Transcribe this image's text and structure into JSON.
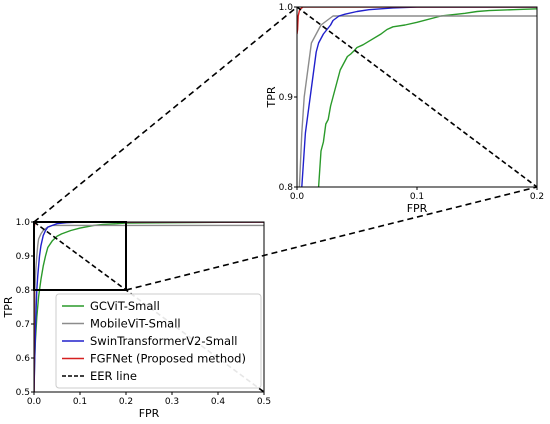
{
  "chart_data": [
    {
      "id": "main",
      "type": "line",
      "xlabel": "FPR",
      "ylabel": "TPR",
      "xlim": [
        0,
        0.5
      ],
      "ylim": [
        0.5,
        1.0
      ],
      "xticks": [
        "0.0",
        "0.1",
        "0.2",
        "0.3",
        "0.4",
        "0.5"
      ],
      "xtick_values": [
        0,
        0.1,
        0.2,
        0.3,
        0.4,
        0.5
      ],
      "yticks": [
        "0.5",
        "0.6",
        "0.7",
        "0.8",
        "0.9",
        "1.0"
      ],
      "ytick_values": [
        0.5,
        0.6,
        0.7,
        0.8,
        0.9,
        1.0
      ],
      "grid": false,
      "legend_position": "lower-right",
      "zoom_box": {
        "x": [
          0,
          0.2
        ],
        "y": [
          0.8,
          1.0
        ]
      },
      "series": [
        {
          "name": "GCViT-Small",
          "color": "#2a9a2a",
          "x": [
            0,
            0.001,
            0.003,
            0.006,
            0.01,
            0.015,
            0.02,
            0.025,
            0.03,
            0.04,
            0.05,
            0.06,
            0.08,
            0.1,
            0.13,
            0.15,
            0.18,
            0.2,
            0.3,
            0.5
          ],
          "y": [
            0.5,
            0.58,
            0.65,
            0.72,
            0.78,
            0.83,
            0.87,
            0.9,
            0.925,
            0.945,
            0.958,
            0.965,
            0.975,
            0.982,
            0.99,
            0.993,
            0.995,
            0.997,
            0.998,
            1.0
          ]
        },
        {
          "name": "MobileViT-Small",
          "color": "#8c8c8c",
          "x": [
            0,
            0.001,
            0.002,
            0.004,
            0.006,
            0.008,
            0.01,
            0.015,
            0.02,
            0.03,
            0.04,
            0.06,
            0.08,
            0.1,
            0.15,
            0.2,
            0.3,
            0.5
          ],
          "y": [
            0.5,
            0.7,
            0.8,
            0.86,
            0.9,
            0.93,
            0.95,
            0.965,
            0.975,
            0.985,
            0.99,
            0.99,
            0.99,
            0.99,
            0.99,
            0.99,
            0.99,
            0.99
          ]
        },
        {
          "name": "SwinTransformerV2-Small",
          "color": "#2020cc",
          "x": [
            0,
            0.002,
            0.004,
            0.006,
            0.008,
            0.01,
            0.012,
            0.015,
            0.02,
            0.025,
            0.03,
            0.04,
            0.05,
            0.07,
            0.1,
            0.15,
            0.2,
            0.5
          ],
          "y": [
            0.5,
            0.62,
            0.72,
            0.8,
            0.84,
            0.87,
            0.9,
            0.93,
            0.96,
            0.975,
            0.985,
            0.99,
            0.995,
            0.998,
            1.0,
            1.0,
            1.0,
            1.0
          ]
        },
        {
          "name": "FGFNet (Proposed method)",
          "color": "#d62020",
          "x": [
            0,
            0.0005,
            0.001,
            0.002,
            0.004,
            0.01,
            0.05,
            0.1,
            0.2,
            0.5
          ],
          "y": [
            0.5,
            0.98,
            0.99,
            0.996,
            1.0,
            1.0,
            1.0,
            1.0,
            1.0,
            1.0
          ]
        },
        {
          "name": "EER line",
          "color": "#000000",
          "dashed": true,
          "x": [
            0,
            0.5
          ],
          "y": [
            1.0,
            0.5
          ]
        }
      ]
    },
    {
      "id": "inset",
      "type": "line",
      "xlabel": "FPR",
      "ylabel": "TPR",
      "xlim": [
        0,
        0.2
      ],
      "ylim": [
        0.8,
        1.0
      ],
      "xticks": [
        "0.0",
        "0.1",
        "0.2"
      ],
      "xtick_values": [
        0,
        0.1,
        0.2
      ],
      "yticks": [
        "0.8",
        "0.9",
        "1.0"
      ],
      "ytick_values": [
        0.8,
        0.9,
        1.0
      ],
      "grid": false,
      "series": [
        {
          "name": "GCViT-Small",
          "color": "#2a9a2a",
          "x": [
            0.018,
            0.019,
            0.02,
            0.022,
            0.024,
            0.026,
            0.028,
            0.03,
            0.032,
            0.034,
            0.036,
            0.038,
            0.04,
            0.042,
            0.045,
            0.048,
            0.05,
            0.055,
            0.06,
            0.07,
            0.075,
            0.08,
            0.09,
            0.1,
            0.12,
            0.14,
            0.15,
            0.16,
            0.18,
            0.2
          ],
          "y": [
            0.8,
            0.82,
            0.84,
            0.85,
            0.87,
            0.875,
            0.89,
            0.9,
            0.91,
            0.92,
            0.93,
            0.935,
            0.94,
            0.945,
            0.948,
            0.952,
            0.955,
            0.958,
            0.962,
            0.97,
            0.975,
            0.978,
            0.98,
            0.983,
            0.99,
            0.993,
            0.995,
            0.996,
            0.997,
            0.998
          ]
        },
        {
          "name": "MobileViT-Small",
          "color": "#8c8c8c",
          "x": [
            0.002,
            0.003,
            0.004,
            0.005,
            0.006,
            0.007,
            0.008,
            0.009,
            0.01,
            0.011,
            0.012,
            0.014,
            0.016,
            0.018,
            0.02,
            0.025,
            0.03,
            0.04,
            0.06,
            0.08,
            0.1,
            0.15,
            0.2
          ],
          "y": [
            0.8,
            0.83,
            0.86,
            0.88,
            0.9,
            0.91,
            0.92,
            0.93,
            0.94,
            0.95,
            0.96,
            0.965,
            0.97,
            0.975,
            0.98,
            0.985,
            0.99,
            0.99,
            0.99,
            0.99,
            0.99,
            0.99,
            0.99
          ]
        },
        {
          "name": "SwinTransformerV2-Small",
          "color": "#2020cc",
          "x": [
            0.004,
            0.005,
            0.006,
            0.007,
            0.008,
            0.009,
            0.01,
            0.011,
            0.012,
            0.013,
            0.014,
            0.015,
            0.016,
            0.018,
            0.02,
            0.022,
            0.025,
            0.028,
            0.03,
            0.035,
            0.04,
            0.05,
            0.06,
            0.07,
            0.08,
            0.1,
            0.12,
            0.15,
            0.2
          ],
          "y": [
            0.8,
            0.82,
            0.84,
            0.86,
            0.87,
            0.88,
            0.89,
            0.9,
            0.91,
            0.92,
            0.93,
            0.94,
            0.95,
            0.96,
            0.965,
            0.97,
            0.975,
            0.98,
            0.985,
            0.99,
            0.992,
            0.995,
            0.997,
            0.998,
            0.999,
            1.0,
            1.0,
            1.0,
            1.0
          ]
        },
        {
          "name": "FGFNet (Proposed method)",
          "color": "#d62020",
          "x": [
            0,
            0.0005,
            0.001,
            0.0015,
            0.002,
            0.003,
            0.004,
            0.005,
            0.01,
            0.05,
            0.1,
            0.2
          ],
          "y": [
            0.97,
            0.975,
            0.99,
            0.993,
            0.996,
            0.998,
            0.999,
            1.0,
            1.0,
            1.0,
            1.0,
            1.0
          ]
        },
        {
          "name": "EER line",
          "color": "#000000",
          "dashed": true,
          "x": [
            0,
            0.2
          ],
          "y": [
            1.0,
            0.8
          ]
        }
      ]
    }
  ]
}
